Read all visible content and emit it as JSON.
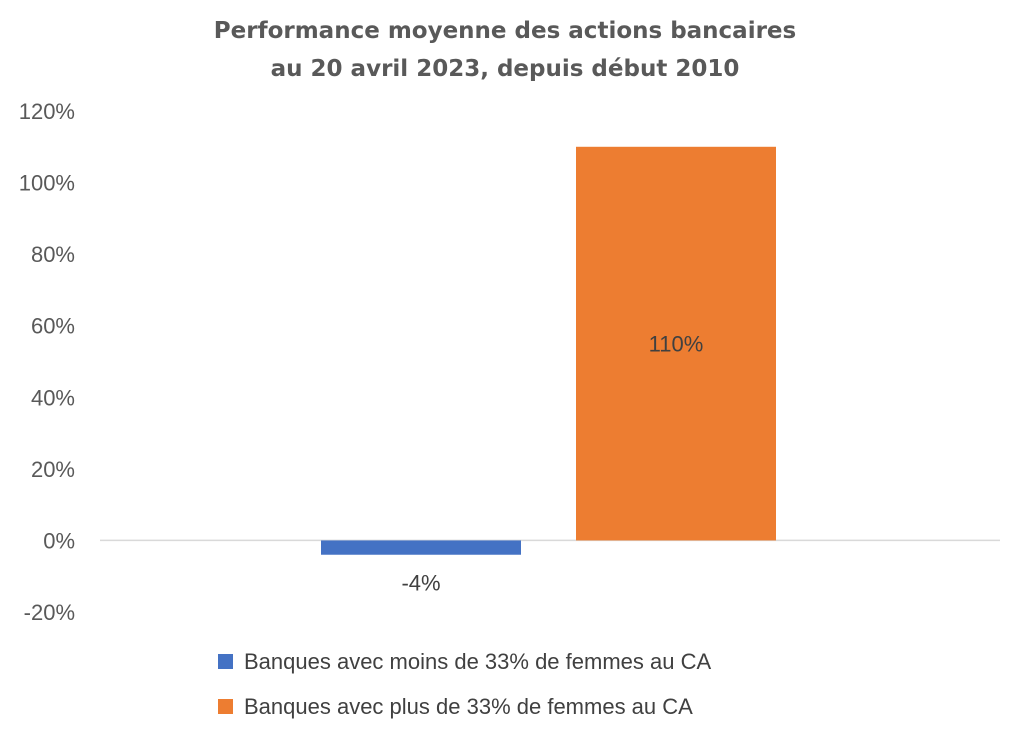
{
  "chart_data": {
    "type": "bar",
    "title": "Performance moyenne des actions bancaires",
    "subtitle": "au 20 avril 2023, depuis début 2010",
    "ylim": [
      -20,
      120
    ],
    "yticks": [
      120,
      100,
      80,
      60,
      40,
      20,
      0,
      -20
    ],
    "ytick_labels": [
      "120%",
      "100%",
      "80%",
      "60%",
      "40%",
      "20%",
      "0%",
      "-20%"
    ],
    "grid": false,
    "legend_position": "bottom",
    "series": [
      {
        "name": "Banques avec moins de 33% de femmes au CA",
        "value": -4,
        "label": "-4%",
        "color": "#4472C4"
      },
      {
        "name": "Banques avec plus de 33% de femmes au CA",
        "value": 110,
        "label": "110%",
        "color": "#ED7D31"
      }
    ]
  }
}
